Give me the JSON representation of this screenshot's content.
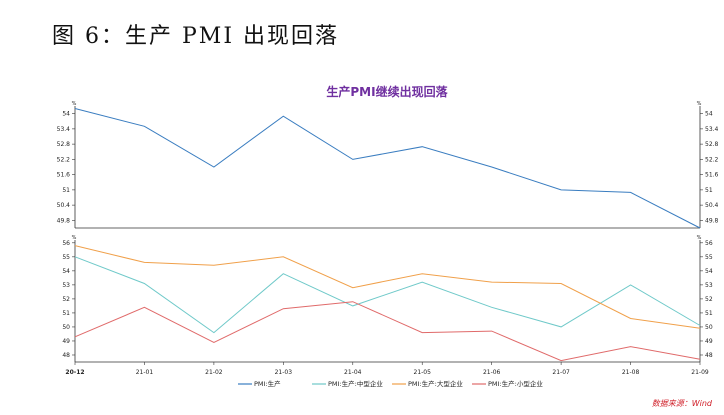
{
  "figure_caption": "图 6：生产 PMI 出现回落",
  "source_note": "数据来源：Wind",
  "colors": {
    "title": "#7030a0",
    "pmi": "#3a7dc0",
    "medium": "#6fc9c9",
    "large": "#f0a04a",
    "small": "#e06a6a",
    "axis": "#333333"
  },
  "chart_data": [
    {
      "type": "line",
      "title": "生产PMI继续出现回落",
      "x": [
        "20-12",
        "21-01",
        "21-02",
        "21-03",
        "21-04",
        "21-05",
        "21-06",
        "21-07",
        "21-08",
        "21-09"
      ],
      "ylabel": "%",
      "ylim": [
        49.5,
        54.3
      ],
      "yticks": [
        49.8,
        50.4,
        51.0,
        51.6,
        52.2,
        52.8,
        53.4,
        54.0
      ],
      "series": [
        {
          "name": "PMI:生产",
          "color_key": "pmi",
          "values": [
            54.2,
            53.5,
            51.9,
            53.9,
            52.2,
            52.7,
            51.9,
            51.0,
            50.9,
            49.5
          ]
        }
      ]
    },
    {
      "type": "line",
      "x": [
        "20-12",
        "21-01",
        "21-02",
        "21-03",
        "21-04",
        "21-05",
        "21-06",
        "21-07",
        "21-08",
        "21-09"
      ],
      "ylabel": "%",
      "ylim": [
        47.5,
        56.2
      ],
      "yticks": [
        48,
        49,
        50,
        51,
        52,
        53,
        54,
        55,
        56
      ],
      "series": [
        {
          "name": "PMI:生产:中型企业",
          "color_key": "medium",
          "values": [
            55.0,
            53.1,
            49.6,
            53.8,
            51.5,
            53.2,
            51.4,
            50.0,
            53.0,
            50.1
          ]
        },
        {
          "name": "PMI:生产:大型企业",
          "color_key": "large",
          "values": [
            55.8,
            54.6,
            54.4,
            55.0,
            52.8,
            53.8,
            53.2,
            53.1,
            50.6,
            49.9
          ]
        },
        {
          "name": "PMI:生产:小型企业",
          "color_key": "small",
          "values": [
            49.3,
            51.4,
            48.9,
            51.3,
            51.8,
            49.6,
            49.7,
            47.6,
            48.6,
            47.7
          ]
        }
      ]
    }
  ]
}
